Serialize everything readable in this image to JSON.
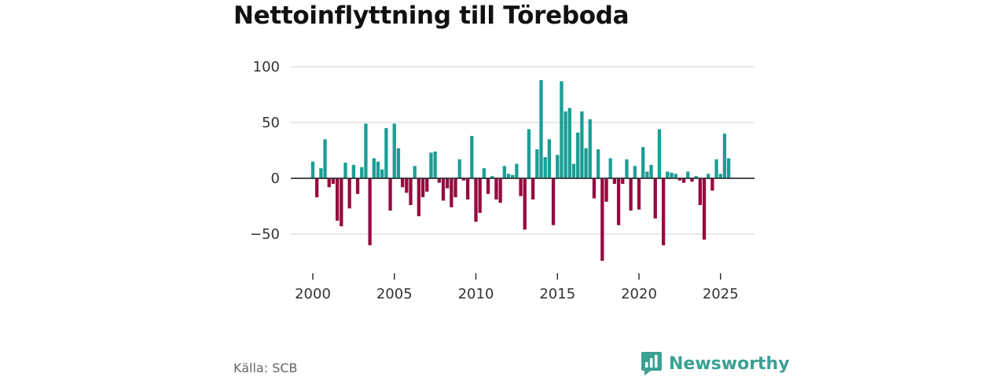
{
  "title": "Nettoinflyttning till Töreboda",
  "source": "Källa: SCB",
  "brand": {
    "name": "Newsworthy",
    "icon": "newsworthy-logo-icon"
  },
  "colors": {
    "positive": "#1a9e96",
    "negative": "#960a3f",
    "brand": "#3aa194",
    "grid": "#d9d9d9",
    "zero_line": "#333333"
  },
  "chart_data": {
    "type": "bar",
    "title": "Nettoinflyttning till Töreboda",
    "xlabel": "",
    "ylabel": "",
    "x_start": 2000.0,
    "x_step": 0.25,
    "x_ticks": [
      2000,
      2005,
      2010,
      2015,
      2020,
      2025
    ],
    "y_ticks": [
      100,
      50,
      0,
      -50
    ],
    "y_tick_labels": [
      "100",
      "50",
      "0",
      "−50"
    ],
    "ylim": [
      -75,
      100
    ],
    "grid": true,
    "values": [
      15,
      -17,
      9,
      35,
      -8,
      -5,
      -38,
      -43,
      14,
      -27,
      12,
      -14,
      10,
      49,
      -60,
      18,
      15,
      8,
      45,
      -29,
      49,
      27,
      -8,
      -13,
      -24,
      11,
      -34,
      -17,
      -12,
      23,
      24,
      -4,
      -20,
      -9,
      -26,
      -17,
      17,
      -2,
      -19,
      38,
      -39,
      -31,
      9,
      -14,
      2,
      -19,
      -22,
      11,
      4,
      3,
      13,
      -16,
      -46,
      44,
      -19,
      26,
      88,
      19,
      35,
      -42,
      21,
      87,
      60,
      63,
      13,
      41,
      60,
      27,
      53,
      -18,
      26,
      -74,
      -21,
      18,
      -5,
      -42,
      -5,
      17,
      -29,
      11,
      -28,
      28,
      6,
      12,
      -36,
      44,
      -60,
      6,
      5,
      4,
      -2,
      -4,
      6,
      -3,
      2,
      -24,
      -55,
      4,
      -11,
      17,
      4,
      40,
      18
    ]
  }
}
